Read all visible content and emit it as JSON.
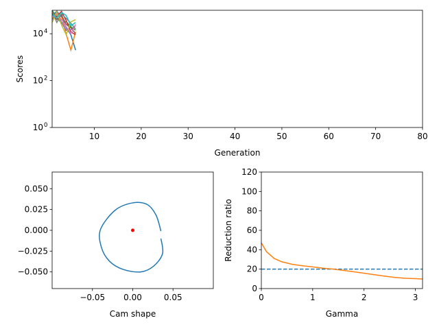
{
  "chart_data": [
    {
      "type": "line",
      "xlabel": "Generation",
      "ylabel": "Scores",
      "xlim": [
        1,
        80
      ],
      "ylim_log10": [
        0,
        5
      ],
      "y_scale": "log",
      "x_ticks": [
        10,
        20,
        30,
        40,
        50,
        60,
        70,
        80
      ],
      "y_ticks": [
        {
          "exp": 0,
          "base": "10",
          "sup": "0"
        },
        {
          "exp": 2,
          "base": "10",
          "sup": "2"
        },
        {
          "exp": 4,
          "base": "10",
          "sup": "4"
        }
      ],
      "colors": [
        "#1f77b4",
        "#ff7f0e",
        "#2ca02c",
        "#d62728",
        "#9467bd",
        "#8c564b",
        "#e377c2",
        "#7f7f7f",
        "#bcbd22",
        "#17becf"
      ],
      "series": [
        {
          "x": [
            1,
            2,
            3,
            4,
            5,
            6
          ],
          "y": [
            60000,
            90000,
            52000,
            18000,
            9000,
            2000
          ]
        },
        {
          "x": [
            1,
            2,
            3,
            4,
            5,
            6
          ],
          "y": [
            45000,
            72000,
            60000,
            9500,
            2000,
            12000
          ]
        },
        {
          "x": [
            1,
            2,
            3,
            4,
            5,
            6
          ],
          "y": [
            100000,
            50000,
            28000,
            33000,
            20000,
            14000
          ]
        },
        {
          "x": [
            1,
            2,
            3,
            4,
            5,
            6
          ],
          "y": [
            70000,
            55000,
            90000,
            36000,
            12000,
            9000
          ]
        },
        {
          "x": [
            1,
            2,
            3,
            4,
            5,
            6
          ],
          "y": [
            38000,
            95000,
            30000,
            14000,
            15000,
            22000
          ]
        },
        {
          "x": [
            1,
            2,
            3,
            4,
            5,
            6
          ],
          "y": [
            80000,
            40000,
            62000,
            25000,
            18000,
            10000
          ]
        },
        {
          "x": [
            1,
            2,
            3,
            4,
            5,
            6
          ],
          "y": [
            55000,
            65000,
            40000,
            20000,
            10000,
            25000
          ]
        },
        {
          "x": [
            1,
            2,
            3,
            4,
            5,
            6
          ],
          "y": [
            90000,
            30000,
            70000,
            45000,
            28000,
            16000
          ]
        },
        {
          "x": [
            1,
            2,
            3,
            4,
            5,
            6
          ],
          "y": [
            30000,
            85000,
            24000,
            9000,
            32000,
            40000
          ]
        },
        {
          "x": [
            1,
            2,
            3,
            4,
            5,
            6
          ],
          "y": [
            65000,
            48000,
            82000,
            60000,
            22000,
            30000
          ]
        }
      ]
    },
    {
      "type": "line",
      "xlabel": "Cam shape",
      "ylabel": "",
      "xlim": [
        -0.1,
        0.1
      ],
      "ylim": [
        -0.07,
        0.07
      ],
      "x_ticks": [
        -0.05,
        0.0,
        0.05
      ],
      "x_tick_labels": [
        "−0.05",
        "0.00",
        "0.05"
      ],
      "y_ticks": [
        0.05,
        0.025,
        0.0,
        -0.025,
        -0.05
      ],
      "y_tick_labels": [
        "0.050",
        "0.025",
        "0.000",
        "−0.025",
        "−0.050"
      ],
      "curve_color": "#1f77b4",
      "center_point": {
        "x": 0.0,
        "y": 0.0,
        "color": "#ff0000"
      },
      "curve": {
        "x": [
          0.035,
          0.029,
          0.018,
          0.0,
          -0.022,
          -0.04,
          -0.039,
          -0.029,
          -0.012,
          0.01,
          0.026,
          0.037,
          0.035
        ],
        "y": [
          -0.001,
          0.018,
          0.031,
          0.033,
          0.024,
          0.001,
          -0.02,
          -0.037,
          -0.047,
          -0.05,
          -0.043,
          -0.028,
          -0.01
        ]
      }
    },
    {
      "type": "line",
      "xlabel": "Gamma",
      "ylabel": "Reduction ratio",
      "xlim": [
        0,
        3.14
      ],
      "ylim": [
        0,
        120
      ],
      "x_ticks": [
        0,
        1,
        2,
        3
      ],
      "y_ticks": [
        0,
        20,
        40,
        60,
        80,
        100,
        120
      ],
      "threshold": {
        "y": 20,
        "color": "#1f77b4",
        "style": "dashed"
      },
      "series": [
        {
          "color": "#ff7f0e",
          "x": [
            0,
            0.1,
            0.25,
            0.4,
            0.6,
            0.8,
            1.0,
            1.2,
            1.4,
            1.6,
            1.8,
            2.0,
            2.2,
            2.4,
            2.6,
            2.8,
            3.0,
            3.14
          ],
          "y": [
            47,
            38,
            31,
            27.5,
            25,
            23.5,
            22.3,
            21,
            20,
            18.7,
            17.3,
            15.8,
            14.3,
            12.8,
            11.5,
            10.6,
            10.2,
            9.8
          ]
        }
      ]
    }
  ]
}
